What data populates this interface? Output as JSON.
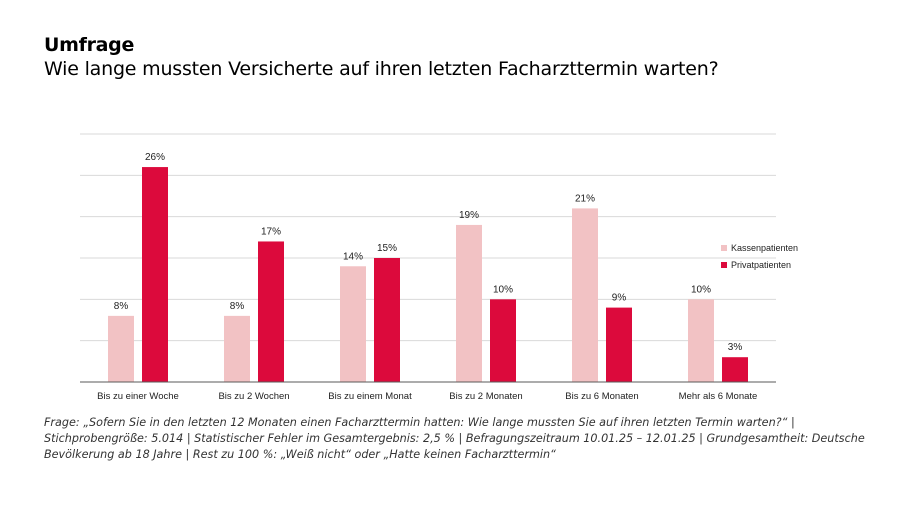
{
  "header": {
    "kicker": "Umfrage",
    "title": "Wie lange mussten Versicherte auf ihren letzten Facharzttermin warten?"
  },
  "chart_data": {
    "type": "bar",
    "categories": [
      "Bis zu einer Woche",
      "Bis zu 2 Wochen",
      "Bis zu einem Monat",
      "Bis zu 2 Monaten",
      "Bis zu 6 Monaten",
      "Mehr als 6 Monate"
    ],
    "series": [
      {
        "name": "Kassenpatienten",
        "values": [
          8,
          8,
          14,
          19,
          21,
          10
        ],
        "labels": [
          "8%",
          "8%",
          "14%",
          "19%",
          "21%",
          "10%"
        ],
        "color": "#F2C2C4"
      },
      {
        "name": "Privatpatienten",
        "values": [
          26,
          17,
          15,
          10,
          9,
          3
        ],
        "labels": [
          "26%",
          "17%",
          "15%",
          "10%",
          "9%",
          "3%"
        ],
        "color": "#DC0A3C"
      }
    ],
    "ylim": [
      0,
      30
    ],
    "grid": true,
    "legend_position": "right"
  },
  "footnote": {
    "line1": "Frage: „Sofern Sie in den letzten 12 Monaten einen Facharzttermin hatten: Wie lange mussten Sie auf ihren letzten Termin warten?“ |",
    "line2": "Stichprobengröße: 5.014 | Statistischer Fehler im Gesamtergebnis: 2,5 % | Befragungszeitraum 10.01.25 – 12.01.25 |  Grundgesamtheit: Deutsche",
    "line3": "Bevölkerung ab 18 Jahre | Rest zu 100 %: „Weiß nicht“ oder „Hatte keinen Facharzttermin“"
  }
}
